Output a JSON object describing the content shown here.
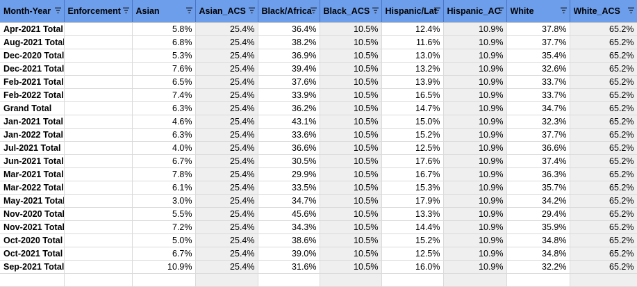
{
  "columns": [
    "Month-Year",
    "Enforcement",
    "Asian",
    "Asian_ACS",
    "Black/Africa",
    "Black_ACS",
    "Hispanic/Lat",
    "Hispanic_AC",
    "White",
    "White_ACS"
  ],
  "rows": [
    [
      "Apr-2021 Total",
      "",
      "5.8%",
      "25.4%",
      "36.4%",
      "10.5%",
      "12.4%",
      "10.9%",
      "37.8%",
      "65.2%"
    ],
    [
      "Aug-2021 Total",
      "",
      "6.8%",
      "25.4%",
      "38.2%",
      "10.5%",
      "11.6%",
      "10.9%",
      "37.7%",
      "65.2%"
    ],
    [
      "Dec-2020 Total",
      "",
      "5.3%",
      "25.4%",
      "36.9%",
      "10.5%",
      "13.0%",
      "10.9%",
      "35.4%",
      "65.2%"
    ],
    [
      "Dec-2021 Total",
      "",
      "7.6%",
      "25.4%",
      "39.4%",
      "10.5%",
      "13.2%",
      "10.9%",
      "32.6%",
      "65.2%"
    ],
    [
      "Feb-2021 Total",
      "",
      "6.5%",
      "25.4%",
      "37.6%",
      "10.5%",
      "13.9%",
      "10.9%",
      "33.7%",
      "65.2%"
    ],
    [
      "Feb-2022 Total",
      "",
      "7.4%",
      "25.4%",
      "33.9%",
      "10.5%",
      "16.5%",
      "10.9%",
      "33.7%",
      "65.2%"
    ],
    [
      "Grand Total",
      "",
      "6.3%",
      "25.4%",
      "36.2%",
      "10.5%",
      "14.7%",
      "10.9%",
      "34.7%",
      "65.2%"
    ],
    [
      "Jan-2021 Total",
      "",
      "4.6%",
      "25.4%",
      "43.1%",
      "10.5%",
      "15.0%",
      "10.9%",
      "32.3%",
      "65.2%"
    ],
    [
      "Jan-2022 Total",
      "",
      "6.3%",
      "25.4%",
      "33.6%",
      "10.5%",
      "15.2%",
      "10.9%",
      "37.7%",
      "65.2%"
    ],
    [
      "Jul-2021 Total",
      "",
      "4.0%",
      "25.4%",
      "36.6%",
      "10.5%",
      "12.5%",
      "10.9%",
      "36.6%",
      "65.2%"
    ],
    [
      "Jun-2021 Total",
      "",
      "6.7%",
      "25.4%",
      "30.5%",
      "10.5%",
      "17.6%",
      "10.9%",
      "37.4%",
      "65.2%"
    ],
    [
      "Mar-2021 Total",
      "",
      "7.8%",
      "25.4%",
      "29.9%",
      "10.5%",
      "16.7%",
      "10.9%",
      "36.3%",
      "65.2%"
    ],
    [
      "Mar-2022 Total",
      "",
      "6.1%",
      "25.4%",
      "33.5%",
      "10.5%",
      "15.3%",
      "10.9%",
      "35.7%",
      "65.2%"
    ],
    [
      "May-2021 Total",
      "",
      "3.0%",
      "25.4%",
      "34.7%",
      "10.5%",
      "17.9%",
      "10.9%",
      "34.2%",
      "65.2%"
    ],
    [
      "Nov-2020 Total",
      "",
      "5.5%",
      "25.4%",
      "45.6%",
      "10.5%",
      "13.3%",
      "10.9%",
      "29.4%",
      "65.2%"
    ],
    [
      "Nov-2021 Total",
      "",
      "7.2%",
      "25.4%",
      "34.3%",
      "10.5%",
      "14.4%",
      "10.9%",
      "35.9%",
      "65.2%"
    ],
    [
      "Oct-2020 Total",
      "",
      "5.0%",
      "25.4%",
      "38.6%",
      "10.5%",
      "15.2%",
      "10.9%",
      "34.8%",
      "65.2%"
    ],
    [
      "Oct-2021 Total",
      "",
      "6.7%",
      "25.4%",
      "39.0%",
      "10.5%",
      "12.5%",
      "10.9%",
      "34.8%",
      "65.2%"
    ],
    [
      "Sep-2021 Total",
      "",
      "10.9%",
      "25.4%",
      "31.6%",
      "10.5%",
      "16.0%",
      "10.9%",
      "32.2%",
      "65.2%"
    ]
  ],
  "grey_columns": [
    3,
    5,
    7,
    9
  ],
  "colors": {
    "header_bg": "#6d9eeb",
    "acs_column_bg": "#efefef",
    "grid_line": "#dadada"
  },
  "icons": {
    "header_filter": "filter-icon"
  }
}
